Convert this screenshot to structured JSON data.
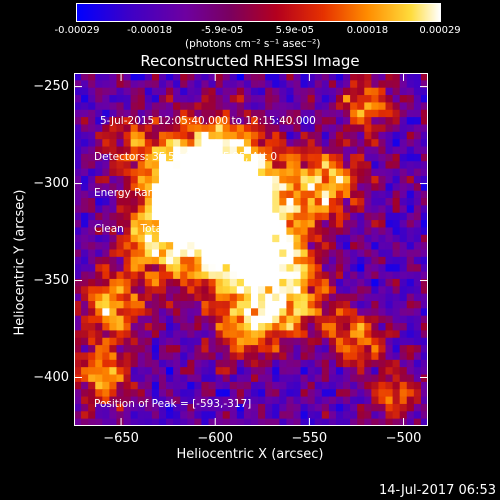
{
  "chart_data": {
    "type": "heatmap",
    "title": "Reconstructed RHESSI Image",
    "xlabel": "Heliocentric X (arcsec)",
    "ylabel": "Heliocentric Y (arcsec)",
    "xlim": [
      -675,
      -487
    ],
    "ylim": [
      -425,
      -243
    ],
    "xticks": [
      -650,
      -600,
      -550,
      -500
    ],
    "yticks": [
      -250,
      -300,
      -350,
      -400
    ],
    "colorbar": {
      "ticks": [
        "-0.00029",
        "-0.00018",
        "-5.9e-05",
        "5.9e-05",
        "0.00018",
        "0.00029"
      ],
      "label": "(photons cm⁻² s⁻¹ asec⁻²)",
      "range": [
        -0.00029,
        0.00029
      ],
      "colors": [
        "#0000ff",
        "#3c00c8",
        "#6e00a0",
        "#a0002a",
        "#e63200",
        "#ff8c00",
        "#ffdc3c",
        "#ffffff"
      ]
    },
    "annotations": [
      "5-Jul-2015 12:05:40.000 to 12:15:40.000",
      "Detectors: 3F 5F 6F 7F 8F 9F, Att 0",
      "Energy Range: 12.0 - 25.0 keV",
      "Clean     Total counts: 1.34E+04"
    ],
    "peak": {
      "label": "Position of Peak = [-593,-317]",
      "x": -593,
      "y": -317
    }
  },
  "footer": {
    "timestamp": "14-Jul-2017 06:53"
  }
}
